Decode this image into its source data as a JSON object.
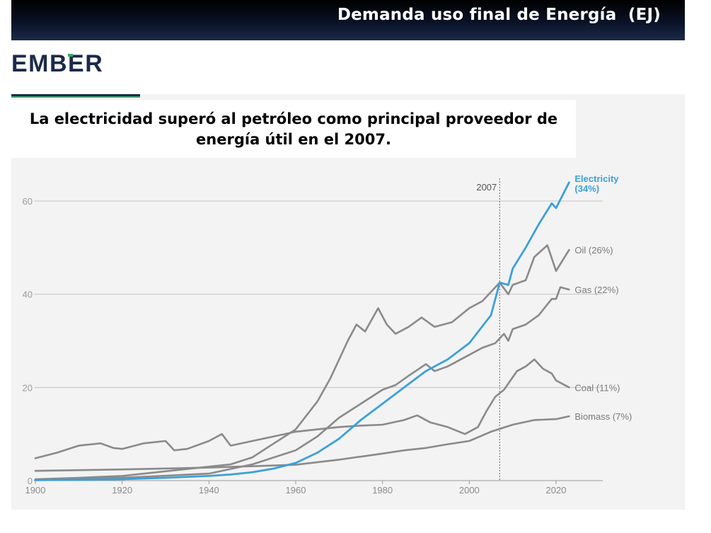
{
  "banner": {
    "title": "Demanda uso final de Energía  (EJ)"
  },
  "logo": {
    "text": "EMBER"
  },
  "headline": {
    "line1": "La electricidad superó al petróleo como principal proveedor de",
    "line2": "energía útil en el 2007."
  },
  "chart_data": {
    "type": "line",
    "xlim": [
      1900,
      2030
    ],
    "ylim": [
      0,
      66
    ],
    "x_ticks": [
      1900,
      1920,
      1940,
      1960,
      1980,
      2000,
      2020
    ],
    "y_ticks": [
      0,
      20,
      40,
      60
    ],
    "grid": true,
    "annotation": {
      "x": 2007,
      "label": "2007"
    },
    "series": [
      {
        "name": "Electricity",
        "label_line1": "Electricity",
        "label_line2": "(34%)",
        "color": "#3ba0d9",
        "points": [
          [
            1900,
            0.1
          ],
          [
            1910,
            0.2
          ],
          [
            1920,
            0.3
          ],
          [
            1930,
            0.6
          ],
          [
            1940,
            1.0
          ],
          [
            1945,
            1.3
          ],
          [
            1950,
            1.8
          ],
          [
            1955,
            2.6
          ],
          [
            1960,
            3.8
          ],
          [
            1965,
            6.0
          ],
          [
            1970,
            9.0
          ],
          [
            1975,
            13.0
          ],
          [
            1980,
            16.5
          ],
          [
            1985,
            20.0
          ],
          [
            1990,
            23.5
          ],
          [
            1995,
            26.0
          ],
          [
            2000,
            29.5
          ],
          [
            2005,
            35.5
          ],
          [
            2007,
            42.5
          ],
          [
            2009,
            42.0
          ],
          [
            2010,
            45.5
          ],
          [
            2013,
            50.0
          ],
          [
            2016,
            55.0
          ],
          [
            2019,
            59.5
          ],
          [
            2020,
            58.5
          ],
          [
            2023,
            64.0
          ]
        ]
      },
      {
        "name": "Oil",
        "label": "Oil (26%)",
        "color": "#8a8a8a",
        "points": [
          [
            1900,
            0.3
          ],
          [
            1910,
            0.6
          ],
          [
            1920,
            1.0
          ],
          [
            1930,
            2.0
          ],
          [
            1940,
            3.0
          ],
          [
            1945,
            3.5
          ],
          [
            1950,
            5.0
          ],
          [
            1955,
            8.0
          ],
          [
            1960,
            11.0
          ],
          [
            1965,
            17.0
          ],
          [
            1968,
            22.0
          ],
          [
            1972,
            30.0
          ],
          [
            1974,
            33.5
          ],
          [
            1976,
            32.0
          ],
          [
            1979,
            37.0
          ],
          [
            1981,
            33.5
          ],
          [
            1983,
            31.5
          ],
          [
            1986,
            33.0
          ],
          [
            1989,
            35.0
          ],
          [
            1992,
            33.0
          ],
          [
            1996,
            34.0
          ],
          [
            2000,
            37.0
          ],
          [
            2003,
            38.5
          ],
          [
            2005,
            40.5
          ],
          [
            2007,
            42.5
          ],
          [
            2009,
            40.0
          ],
          [
            2010,
            42.0
          ],
          [
            2013,
            43.0
          ],
          [
            2015,
            48.0
          ],
          [
            2018,
            50.5
          ],
          [
            2020,
            45.0
          ],
          [
            2023,
            49.5
          ]
        ]
      },
      {
        "name": "Gas",
        "label": "Gas (22%)",
        "color": "#8a8a8a",
        "points": [
          [
            1900,
            0.2
          ],
          [
            1920,
            0.6
          ],
          [
            1940,
            1.5
          ],
          [
            1950,
            3.5
          ],
          [
            1960,
            6.5
          ],
          [
            1965,
            9.5
          ],
          [
            1970,
            13.5
          ],
          [
            1975,
            16.5
          ],
          [
            1980,
            19.5
          ],
          [
            1983,
            20.5
          ],
          [
            1986,
            22.5
          ],
          [
            1990,
            25.0
          ],
          [
            1992,
            23.5
          ],
          [
            1995,
            24.5
          ],
          [
            1998,
            26.0
          ],
          [
            2000,
            27.0
          ],
          [
            2003,
            28.5
          ],
          [
            2006,
            29.5
          ],
          [
            2008,
            31.5
          ],
          [
            2009,
            30.0
          ],
          [
            2010,
            32.5
          ],
          [
            2013,
            33.5
          ],
          [
            2016,
            35.5
          ],
          [
            2019,
            39.0
          ],
          [
            2020,
            39.0
          ],
          [
            2021,
            41.5
          ],
          [
            2023,
            41.0
          ]
        ]
      },
      {
        "name": "Coal",
        "label": "Coal (11%)",
        "color": "#8a8a8a",
        "points": [
          [
            1900,
            4.8
          ],
          [
            1905,
            6.0
          ],
          [
            1910,
            7.5
          ],
          [
            1915,
            8.0
          ],
          [
            1918,
            7.0
          ],
          [
            1920,
            6.8
          ],
          [
            1925,
            8.0
          ],
          [
            1930,
            8.5
          ],
          [
            1932,
            6.5
          ],
          [
            1935,
            6.8
          ],
          [
            1940,
            8.5
          ],
          [
            1943,
            10.0
          ],
          [
            1945,
            7.5
          ],
          [
            1950,
            8.5
          ],
          [
            1955,
            9.5
          ],
          [
            1960,
            10.5
          ],
          [
            1965,
            11.0
          ],
          [
            1970,
            11.5
          ],
          [
            1975,
            11.8
          ],
          [
            1980,
            12.0
          ],
          [
            1985,
            13.0
          ],
          [
            1988,
            14.0
          ],
          [
            1991,
            12.5
          ],
          [
            1995,
            11.5
          ],
          [
            1999,
            10.0
          ],
          [
            2002,
            11.5
          ],
          [
            2004,
            15.0
          ],
          [
            2006,
            18.0
          ],
          [
            2008,
            19.5
          ],
          [
            2011,
            23.5
          ],
          [
            2013,
            24.5
          ],
          [
            2015,
            26.0
          ],
          [
            2017,
            24.0
          ],
          [
            2019,
            23.0
          ],
          [
            2020,
            21.5
          ],
          [
            2023,
            20.0
          ]
        ]
      },
      {
        "name": "Biomass",
        "label": "Biomass (7%)",
        "color": "#8a8a8a",
        "points": [
          [
            1900,
            2.1
          ],
          [
            1920,
            2.4
          ],
          [
            1940,
            2.8
          ],
          [
            1960,
            3.4
          ],
          [
            1970,
            4.5
          ],
          [
            1980,
            5.8
          ],
          [
            1985,
            6.5
          ],
          [
            1990,
            7.0
          ],
          [
            1995,
            7.8
          ],
          [
            2000,
            8.5
          ],
          [
            2005,
            10.5
          ],
          [
            2010,
            12.0
          ],
          [
            2015,
            13.0
          ],
          [
            2020,
            13.2
          ],
          [
            2023,
            13.8
          ]
        ]
      }
    ]
  }
}
